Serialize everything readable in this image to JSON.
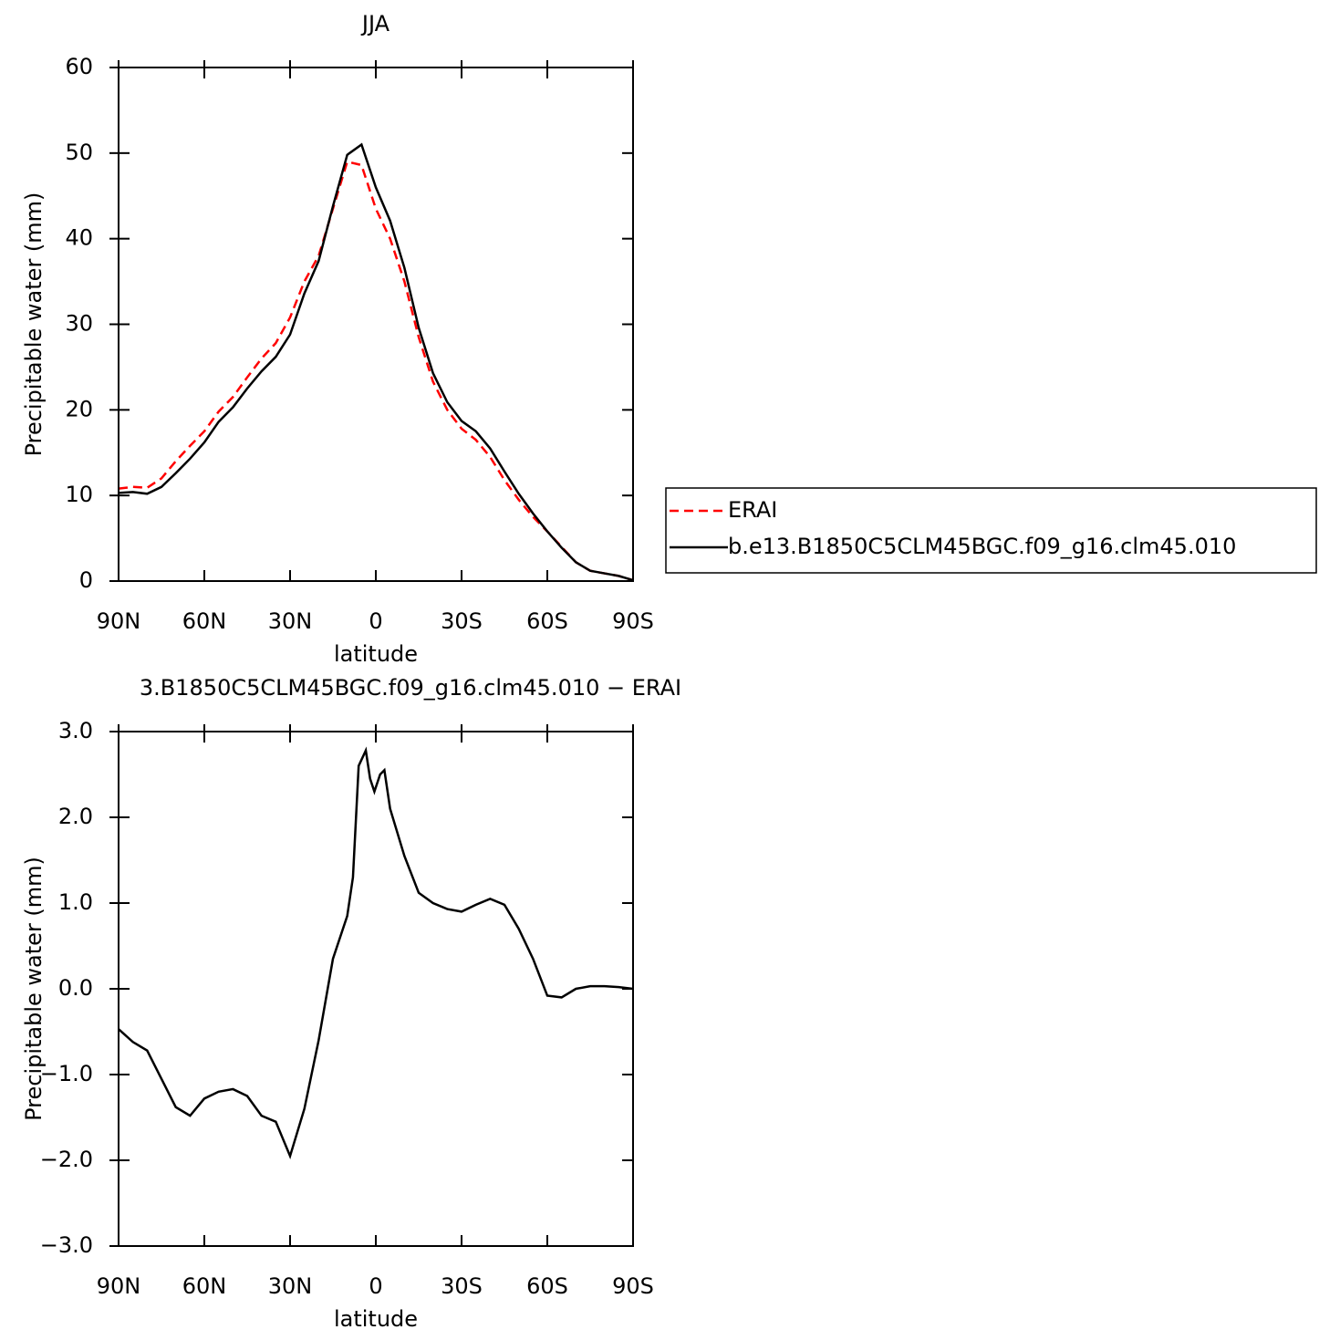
{
  "chart_data": [
    {
      "type": "line",
      "title": "JJA",
      "xlabel": "latitude",
      "ylabel": "Precipitable water (mm)",
      "x": [
        90,
        85,
        80,
        75,
        70,
        65,
        60,
        55,
        50,
        45,
        40,
        35,
        30,
        25,
        20,
        15,
        10,
        5,
        0,
        -5,
        -10,
        -15,
        -20,
        -25,
        -30,
        -35,
        -40,
        -45,
        -50,
        -55,
        -60,
        -65,
        -70,
        -75,
        -80,
        -85,
        -90
      ],
      "series": [
        {
          "name": "ERAI",
          "color": "#ff0000",
          "dash": true,
          "values": [
            10.8,
            11.0,
            10.9,
            12.0,
            14.0,
            15.8,
            17.5,
            19.8,
            21.5,
            23.8,
            26.0,
            27.8,
            30.8,
            35.0,
            38.0,
            43.5,
            49.0,
            48.6,
            43.5,
            40.0,
            35.0,
            28.5,
            23.3,
            20.0,
            17.8,
            16.5,
            14.5,
            11.8,
            9.5,
            7.5,
            5.8,
            4.0,
            2.2,
            1.2,
            0.9,
            0.6,
            0.1
          ]
        },
        {
          "name": "b.e13.B1850C5CLM45BGC.f09_g16.clm45.010",
          "color": "#000000",
          "dash": false,
          "values": [
            10.3,
            10.4,
            10.2,
            11.0,
            12.6,
            14.3,
            16.2,
            18.6,
            20.3,
            22.5,
            24.5,
            26.2,
            28.8,
            33.6,
            37.4,
            43.8,
            49.8,
            51.0,
            46.0,
            42.1,
            36.6,
            29.6,
            24.3,
            20.9,
            18.7,
            17.5,
            15.5,
            12.8,
            10.2,
            7.9,
            5.8,
            3.9,
            2.2,
            1.2,
            0.9,
            0.6,
            0.1
          ]
        }
      ],
      "xlim": [
        90,
        -90
      ],
      "xticks": [
        {
          "value": 90,
          "label": "90N"
        },
        {
          "value": 60,
          "label": "60N"
        },
        {
          "value": 30,
          "label": "30N"
        },
        0,
        {
          "value": -30,
          "label": "30S"
        },
        {
          "value": -60,
          "label": "60S"
        },
        {
          "value": -90,
          "label": "90S"
        }
      ],
      "ylim": [
        0,
        60
      ],
      "yticks": [
        0,
        10,
        20,
        30,
        40,
        50,
        60
      ],
      "legend": "right"
    },
    {
      "type": "line",
      "title": "3.B1850C5CLM45BGC.f09_g16.clm45.010 − ERAI",
      "xlabel": "latitude",
      "ylabel": "Precipitable water (mm)",
      "x": [
        90,
        85,
        80,
        75,
        70,
        65,
        60,
        55,
        50,
        45,
        40,
        35,
        30,
        25,
        20,
        15,
        10,
        8,
        6,
        3.5,
        2,
        0.5,
        -1.5,
        -3,
        -5,
        -10,
        -15,
        -20,
        -25,
        -30,
        -35,
        -40,
        -45,
        -50,
        -55,
        -60,
        -65,
        -70,
        -75,
        -80,
        -85,
        -90
      ],
      "values": [
        -0.47,
        -0.62,
        -0.72,
        -1.05,
        -1.38,
        -1.48,
        -1.28,
        -1.2,
        -1.17,
        -1.25,
        -1.48,
        -1.55,
        -1.95,
        -1.4,
        -0.6,
        0.35,
        0.85,
        1.3,
        2.6,
        2.78,
        2.45,
        2.3,
        2.5,
        2.55,
        2.1,
        1.55,
        1.12,
        1.0,
        0.93,
        0.9,
        0.98,
        1.05,
        0.98,
        0.7,
        0.35,
        -0.08,
        -0.1,
        0.0,
        0.03,
        0.03,
        0.02,
        0.0
      ],
      "color": "#000000",
      "xlim": [
        90,
        -90
      ],
      "xticks": [
        {
          "value": 90,
          "label": "90N"
        },
        {
          "value": 60,
          "label": "60N"
        },
        {
          "value": 30,
          "label": "30N"
        },
        0,
        {
          "value": -30,
          "label": "30S"
        },
        {
          "value": -60,
          "label": "60S"
        },
        {
          "value": -90,
          "label": "90S"
        }
      ],
      "ylim": [
        -3,
        3
      ],
      "yticks": [
        {
          "value": -3,
          "label": "−3.0"
        },
        {
          "value": -2,
          "label": "−2.0"
        },
        {
          "value": -1,
          "label": "−1.0"
        },
        {
          "value": 0,
          "label": "0.0"
        },
        {
          "value": 1,
          "label": "1.0"
        },
        {
          "value": 2,
          "label": "2.0"
        },
        {
          "value": 3,
          "label": "3.0"
        }
      ]
    }
  ]
}
